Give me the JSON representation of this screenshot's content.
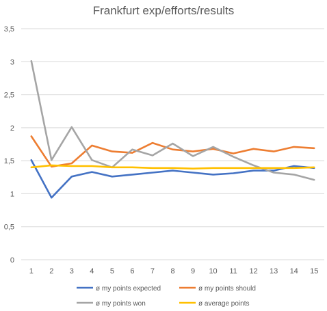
{
  "chart_data": {
    "type": "line",
    "title": "Frankfurt exp/efforts/results",
    "xlabel": "",
    "ylabel": "",
    "x": [
      1,
      2,
      3,
      4,
      5,
      6,
      7,
      8,
      9,
      10,
      11,
      12,
      13,
      14,
      15
    ],
    "ylim": [
      0,
      3.5
    ],
    "yticks": [
      0,
      0.5,
      1,
      1.5,
      2,
      2.5,
      3,
      3.5
    ],
    "ytick_labels": [
      "0",
      "0,5",
      "1",
      "1,5",
      "2",
      "2,5",
      "3",
      "3,5"
    ],
    "grid": true,
    "legend_position": "bottom",
    "series": [
      {
        "name": "ø my points expected",
        "color": "#4472C4",
        "values": [
          1.51,
          0.94,
          1.26,
          1.33,
          1.26,
          1.29,
          1.32,
          1.35,
          1.32,
          1.29,
          1.31,
          1.35,
          1.35,
          1.42,
          1.39
        ]
      },
      {
        "name": "ø my points should",
        "color": "#ED7D31",
        "values": [
          1.87,
          1.41,
          1.46,
          1.73,
          1.64,
          1.62,
          1.77,
          1.67,
          1.64,
          1.68,
          1.61,
          1.68,
          1.64,
          1.71,
          1.69
        ]
      },
      {
        "name": "ø my points won",
        "color": "#A5A5A5",
        "values": [
          3.01,
          1.51,
          2.01,
          1.51,
          1.4,
          1.67,
          1.58,
          1.76,
          1.57,
          1.71,
          1.56,
          1.43,
          1.32,
          1.29,
          1.21
        ]
      },
      {
        "name": "ø average points",
        "color": "#FFC000",
        "values": [
          1.4,
          1.43,
          1.42,
          1.42,
          1.4,
          1.4,
          1.39,
          1.39,
          1.38,
          1.39,
          1.39,
          1.39,
          1.39,
          1.39,
          1.4
        ]
      }
    ]
  }
}
